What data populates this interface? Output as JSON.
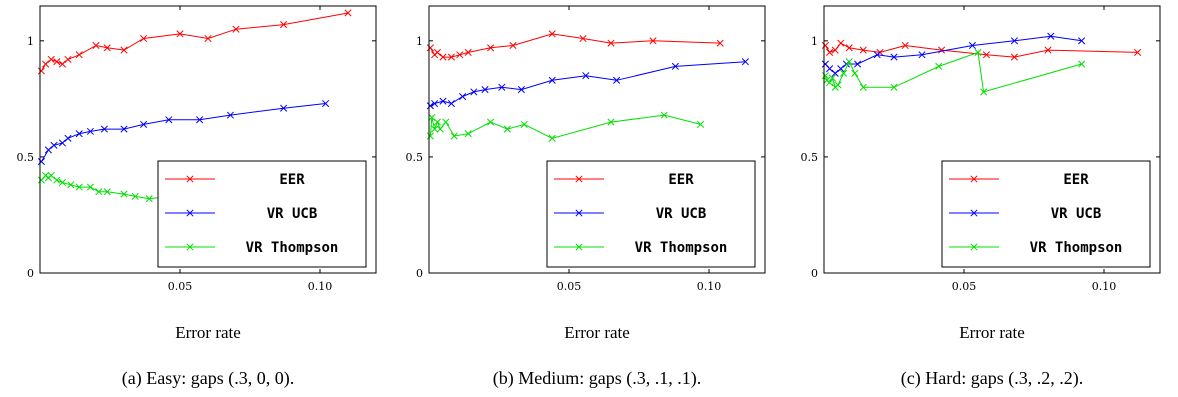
{
  "chart_data": [
    {
      "type": "line",
      "xlabel": "Error rate",
      "caption_prefix": "(a) Easy: gaps",
      "caption_math": "(.3, 0, 0).",
      "xlim": [
        0,
        0.12
      ],
      "ylim": [
        0,
        1.15
      ],
      "xticks": [
        0.05,
        0.1
      ],
      "xtick_labels": [
        "0.05",
        "0.10"
      ],
      "yticks": [
        0,
        0.5,
        1
      ],
      "ytick_labels": [
        "0",
        "0.5",
        "1"
      ],
      "legend_position": "bottom-right",
      "series": [
        {
          "name": "EER",
          "color": "#ff0000",
          "x": [
            0.0005,
            0.002,
            0.004,
            0.006,
            0.008,
            0.01,
            0.014,
            0.02,
            0.024,
            0.03,
            0.037,
            0.05,
            0.06,
            0.07,
            0.087,
            0.11
          ],
          "y": [
            0.87,
            0.9,
            0.92,
            0.91,
            0.9,
            0.92,
            0.94,
            0.98,
            0.97,
            0.96,
            1.01,
            1.03,
            1.01,
            1.05,
            1.07,
            1.12
          ]
        },
        {
          "name": "VR UCB",
          "color": "#0000ff",
          "x": [
            0.0005,
            0.003,
            0.005,
            0.008,
            0.01,
            0.014,
            0.018,
            0.023,
            0.03,
            0.037,
            0.046,
            0.057,
            0.068,
            0.087,
            0.102
          ],
          "y": [
            0.48,
            0.53,
            0.55,
            0.56,
            0.58,
            0.6,
            0.61,
            0.62,
            0.62,
            0.64,
            0.66,
            0.66,
            0.68,
            0.71,
            0.73
          ]
        },
        {
          "name": "VR Thompson",
          "color": "#00e000",
          "x": [
            0.0005,
            0.002,
            0.003,
            0.004,
            0.006,
            0.008,
            0.011,
            0.014,
            0.018,
            0.021,
            0.024,
            0.03,
            0.034,
            0.039,
            0.046
          ],
          "y": [
            0.4,
            0.42,
            0.41,
            0.42,
            0.4,
            0.39,
            0.38,
            0.37,
            0.37,
            0.35,
            0.35,
            0.34,
            0.33,
            0.32,
            0.33
          ]
        }
      ]
    },
    {
      "type": "line",
      "xlabel": "Error rate",
      "caption_prefix": "(b) Medium: gaps",
      "caption_math": "(.3, .1, .1).",
      "xlim": [
        0,
        0.12
      ],
      "ylim": [
        0,
        1.15
      ],
      "xticks": [
        0.05,
        0.1
      ],
      "xtick_labels": [
        "0.05",
        "0.10"
      ],
      "yticks": [
        0,
        0.5,
        1
      ],
      "ytick_labels": [
        "0",
        "0.5",
        "1"
      ],
      "legend_position": "bottom-right",
      "series": [
        {
          "name": "EER",
          "color": "#ff0000",
          "x": [
            0.0005,
            0.002,
            0.003,
            0.005,
            0.008,
            0.011,
            0.014,
            0.022,
            0.03,
            0.044,
            0.055,
            0.065,
            0.08,
            0.104
          ],
          "y": [
            0.97,
            0.94,
            0.95,
            0.93,
            0.93,
            0.94,
            0.95,
            0.97,
            0.98,
            1.03,
            1.01,
            0.99,
            1.0,
            0.99
          ]
        },
        {
          "name": "VR UCB",
          "color": "#0000ff",
          "x": [
            0.0005,
            0.002,
            0.005,
            0.008,
            0.012,
            0.016,
            0.02,
            0.026,
            0.033,
            0.044,
            0.056,
            0.067,
            0.088,
            0.113
          ],
          "y": [
            0.72,
            0.73,
            0.74,
            0.73,
            0.76,
            0.78,
            0.79,
            0.8,
            0.79,
            0.83,
            0.85,
            0.83,
            0.89,
            0.91
          ]
        },
        {
          "name": "VR Thompson",
          "color": "#00e000",
          "x": [
            0.0005,
            0.001,
            0.002,
            0.003,
            0.004,
            0.006,
            0.009,
            0.014,
            0.022,
            0.028,
            0.034,
            0.044,
            0.065,
            0.084,
            0.097
          ],
          "y": [
            0.59,
            0.67,
            0.62,
            0.65,
            0.62,
            0.65,
            0.59,
            0.6,
            0.65,
            0.62,
            0.64,
            0.58,
            0.65,
            0.68,
            0.64
          ]
        }
      ]
    },
    {
      "type": "line",
      "xlabel": "Error rate",
      "caption_prefix": "(c) Hard: gaps",
      "caption_math": "(.3, .2, .2).",
      "xlim": [
        0,
        0.12
      ],
      "ylim": [
        0,
        1.15
      ],
      "xticks": [
        0.05,
        0.1
      ],
      "xtick_labels": [
        "0.05",
        "0.10"
      ],
      "yticks": [
        0,
        0.5,
        1
      ],
      "ytick_labels": [
        "0",
        "0.5",
        "1"
      ],
      "legend_position": "bottom-right",
      "series": [
        {
          "name": "EER",
          "color": "#ff0000",
          "x": [
            0.0005,
            0.002,
            0.004,
            0.006,
            0.009,
            0.014,
            0.02,
            0.029,
            0.042,
            0.058,
            0.068,
            0.08,
            0.112
          ],
          "y": [
            0.98,
            0.95,
            0.96,
            0.99,
            0.97,
            0.96,
            0.95,
            0.98,
            0.96,
            0.94,
            0.93,
            0.96,
            0.95
          ]
        },
        {
          "name": "VR UCB",
          "color": "#0000ff",
          "x": [
            0.0005,
            0.002,
            0.004,
            0.006,
            0.008,
            0.012,
            0.019,
            0.025,
            0.035,
            0.053,
            0.068,
            0.081,
            0.092
          ],
          "y": [
            0.9,
            0.88,
            0.86,
            0.88,
            0.9,
            0.9,
            0.94,
            0.93,
            0.94,
            0.98,
            1.0,
            1.02,
            1.0
          ]
        },
        {
          "name": "VR Thompson",
          "color": "#00e000",
          "x": [
            0.0005,
            0.001,
            0.002,
            0.003,
            0.004,
            0.005,
            0.007,
            0.009,
            0.011,
            0.014,
            0.025,
            0.041,
            0.055,
            0.057,
            0.092
          ],
          "y": [
            0.85,
            0.83,
            0.82,
            0.84,
            0.8,
            0.81,
            0.86,
            0.91,
            0.86,
            0.8,
            0.8,
            0.89,
            0.95,
            0.78,
            0.9
          ]
        }
      ]
    }
  ]
}
